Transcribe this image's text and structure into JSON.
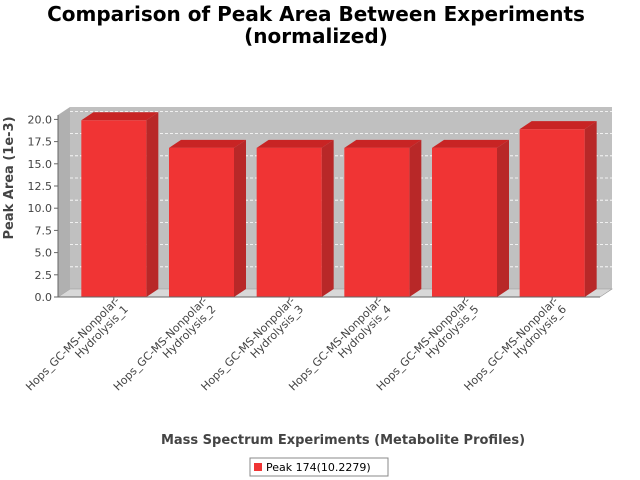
{
  "chart_data": {
    "type": "bar",
    "title_lines": [
      "Comparison of Peak Area Between Experiments",
      "(normalized)"
    ],
    "xlabel": "Mass Spectrum Experiments (Metabolite Profiles)",
    "ylabel": "Peak Area (1e-3)",
    "ylim": [
      0,
      20.5
    ],
    "yticks": [
      "0.0",
      "2.5",
      "5.0",
      "7.5",
      "10.0",
      "12.5",
      "15.0",
      "17.5",
      "20.0"
    ],
    "grid": true,
    "legend_position": "bottom",
    "categories": [
      [
        "Hops_GC-MS-Nonpolar-",
        "Hydrolysis_1"
      ],
      [
        "Hops_GC-MS-Nonpolar-",
        "Hydrolysis_2"
      ],
      [
        "Hops_GC-MS-Nonpolar-",
        "Hydrolysis_3"
      ],
      [
        "Hops_GC-MS-Nonpolar-",
        "Hydrolysis_4"
      ],
      [
        "Hops_GC-MS-Nonpolar-",
        "Hydrolysis_5"
      ],
      [
        "Hops_GC-MS-Nonpolar-",
        "Hydrolysis_6"
      ]
    ],
    "series": [
      {
        "name": "Peak 174(10.2279)",
        "values": [
          19.9,
          16.8,
          16.8,
          16.8,
          16.8,
          18.9
        ]
      }
    ]
  },
  "colors": {
    "bar_front": "#f03434",
    "bar_top": "#c82424",
    "bar_side": "#b82828",
    "plot_back": "#c0c0c0",
    "plot_floor": "#d8d8d8",
    "grid": "#ffffff"
  }
}
